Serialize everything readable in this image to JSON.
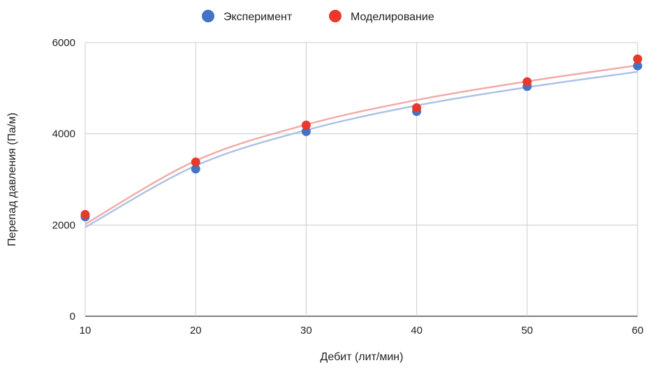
{
  "chart_data": {
    "type": "scatter",
    "title": "",
    "xlabel": "Дебит (лит/мин)",
    "ylabel": "Перепад давления (Па/м)",
    "xlim": [
      10,
      60
    ],
    "ylim": [
      0,
      6000
    ],
    "x_ticks": [
      "10",
      "20",
      "30",
      "40",
      "50",
      "60"
    ],
    "y_ticks": [
      "0",
      "2000",
      "4000",
      "6000"
    ],
    "grid": true,
    "legend_position": "top-center",
    "trendlines": true,
    "series": [
      {
        "name": "Эксперимент",
        "color": "#4472C4",
        "trend_color": "#AEC2E6",
        "x": [
          10,
          20,
          30,
          40,
          50,
          60
        ],
        "values": [
          2180,
          3230,
          4050,
          4490,
          5040,
          5490
        ],
        "trend": [
          1950,
          3300,
          4080,
          4620,
          5020,
          5360
        ]
      },
      {
        "name": "Моделирование",
        "color": "#E8392C",
        "trend_color": "#F2ABA7",
        "x": [
          10,
          20,
          30,
          40,
          50,
          60
        ],
        "values": [
          2230,
          3380,
          4190,
          4570,
          5140,
          5640
        ],
        "trend": [
          2020,
          3410,
          4200,
          4740,
          5150,
          5500
        ]
      }
    ]
  }
}
